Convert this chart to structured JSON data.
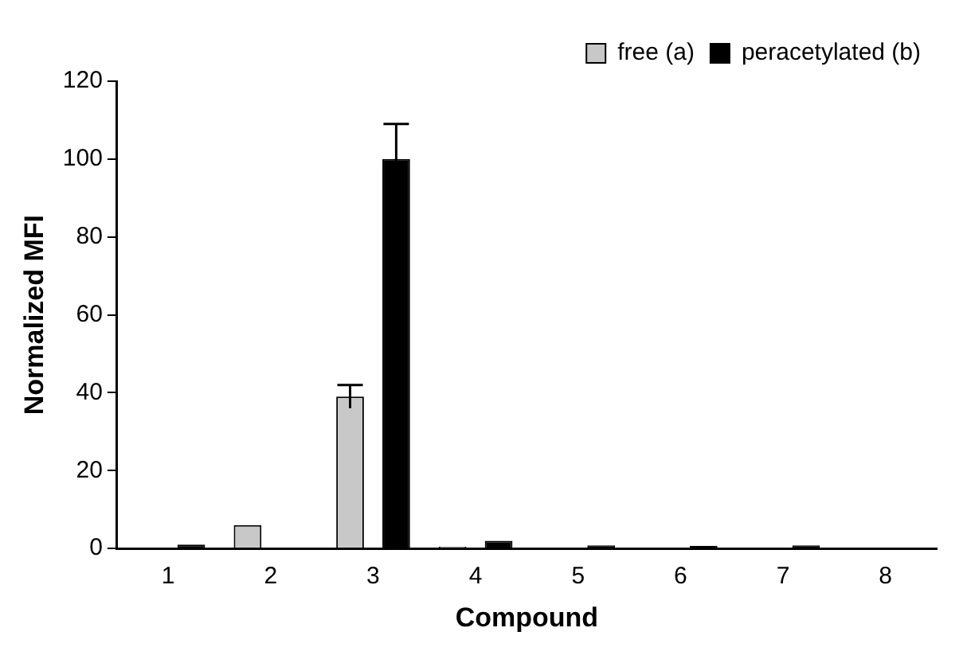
{
  "chart_data": {
    "type": "bar",
    "xlabel": "Compound",
    "ylabel": "Normalized MFI",
    "categories": [
      "1",
      "2",
      "3",
      "4",
      "5",
      "6",
      "7",
      "8"
    ],
    "series": [
      {
        "name": "free (a)",
        "color": "#c8c8c8",
        "values": [
          null,
          6,
          39,
          0.5,
          null,
          null,
          null,
          null
        ],
        "errors": [
          null,
          null,
          3,
          null,
          null,
          null,
          null,
          null
        ]
      },
      {
        "name": "peracetylated (b)",
        "color": "#000000",
        "values": [
          1,
          0,
          100,
          2,
          0.8,
          0.7,
          0.8,
          null
        ],
        "errors": [
          null,
          null,
          9,
          null,
          null,
          null,
          null,
          null
        ]
      }
    ],
    "ylim": [
      0,
      120
    ],
    "yticks": [
      0,
      20,
      40,
      60,
      80,
      100,
      120
    ],
    "grid": false,
    "legend": "top right"
  }
}
